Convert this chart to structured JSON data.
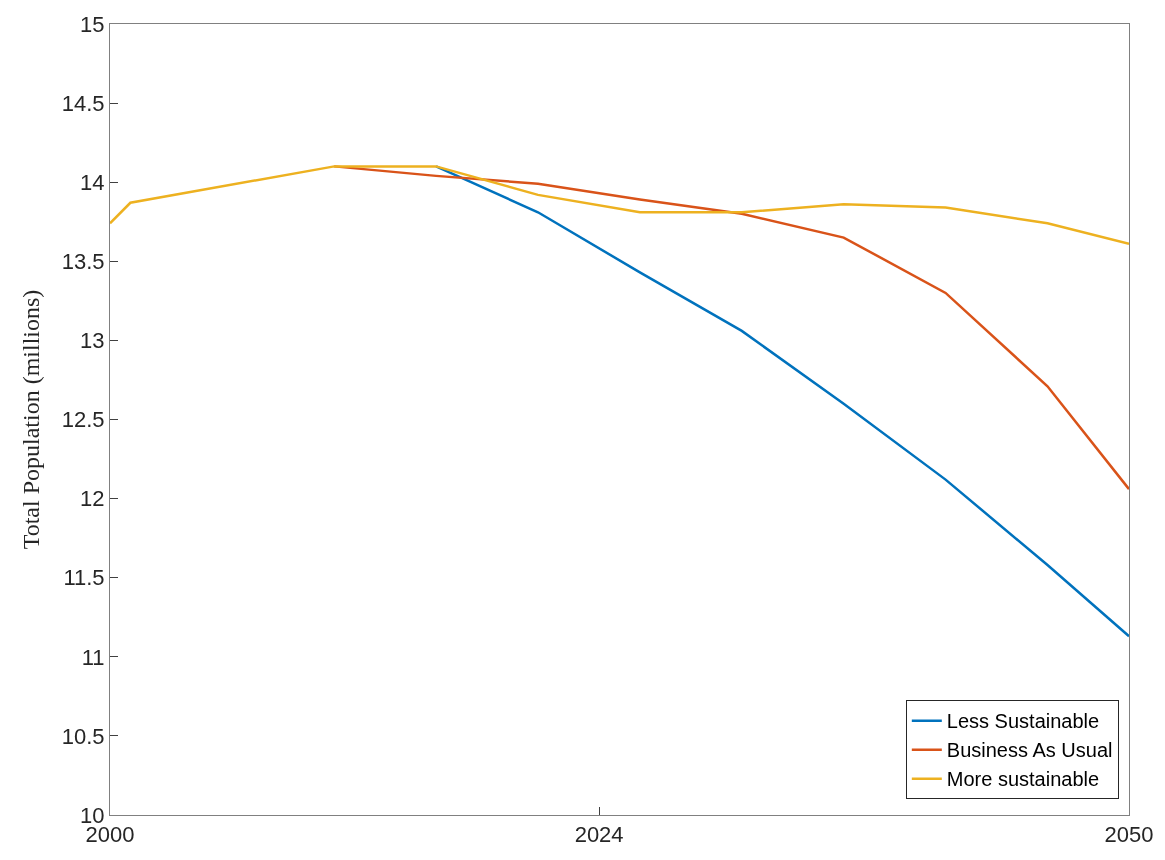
{
  "chart_data": {
    "type": "line",
    "ylabel": "Total Population (millions)",
    "x": [
      2000,
      2001,
      2011,
      2016,
      2021,
      2026,
      2031,
      2036,
      2041,
      2046,
      2050
    ],
    "series": [
      {
        "name": "Less Sustainable",
        "color": "#0072bd",
        "values": [
          null,
          null,
          null,
          14.1,
          13.81,
          13.43,
          13.06,
          12.6,
          12.12,
          11.58,
          11.13
        ]
      },
      {
        "name": "Business As Usual",
        "color": "#d95319",
        "values": [
          null,
          null,
          14.1,
          14.04,
          13.99,
          13.89,
          13.8,
          13.65,
          13.3,
          12.71,
          12.06
        ]
      },
      {
        "name": "More sustainable",
        "color": "#edb120",
        "values": [
          13.74,
          13.87,
          14.1,
          14.1,
          13.92,
          13.81,
          13.81,
          13.86,
          13.84,
          13.74,
          13.61
        ]
      }
    ],
    "xlim": [
      2000,
      2050
    ],
    "xticks": [
      2000,
      2024,
      2050
    ],
    "ylim": [
      10,
      15
    ],
    "yticks": [
      10,
      10.5,
      11,
      11.5,
      12,
      12.5,
      13,
      13.5,
      14,
      14.5,
      15
    ],
    "legend": "bottom right",
    "marker": "none",
    "line_style": "solid"
  }
}
